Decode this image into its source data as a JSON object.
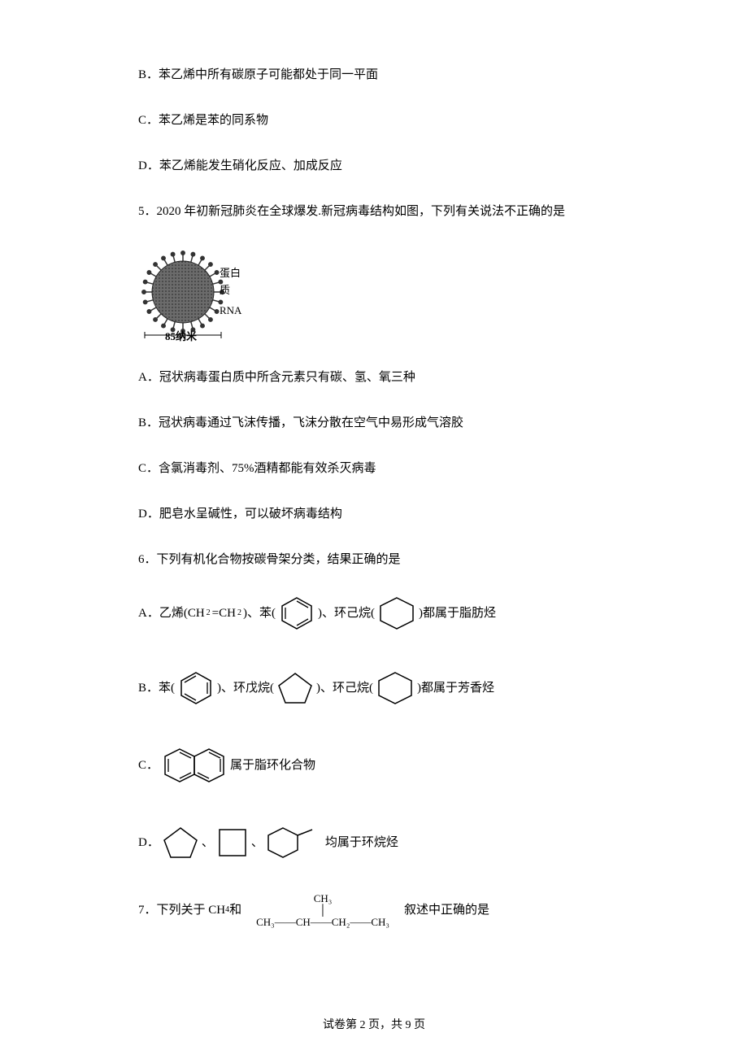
{
  "q4": {
    "optB": "B．苯乙烯中所有碳原子可能都处于同一平面",
    "optC": "C．苯乙烯是苯的同系物",
    "optD": "D．苯乙烯能发生硝化反应、加成反应"
  },
  "q5": {
    "stem": "5．2020 年初新冠肺炎在全球爆发.新冠病毒结构如图，下列有关说法不正确的是",
    "figure": {
      "protein_label": "蛋白质",
      "rna_label": "RNA",
      "size_label": "85纳米",
      "virus_color": "#4a4a4a",
      "spike_color": "#333333",
      "bg": "#ffffff"
    },
    "optA": "A．冠状病毒蛋白质中所含元素只有碳、氢、氧三种",
    "optB": "B．冠状病毒通过飞沫传播，飞沫分散在空气中易形成气溶胶",
    "optC": "C．含氯消毒剂、75%酒精都能有效杀灭病毒",
    "optD": "D．肥皂水呈碱性，可以破坏病毒结构"
  },
  "q6": {
    "stem": "6．下列有机化合物按碳骨架分类，结果正确的是",
    "optA": {
      "pre": "A．乙烯(CH",
      "sub1": "2",
      "mid1": "=CH",
      "sub2": "2",
      "mid2": ")、苯(",
      "mid3": ")、环己烷(",
      "tail": ")都属于脂肪烃"
    },
    "optB": {
      "pre": "B．苯(",
      "mid1": ")、环戊烷(",
      "mid2": ")、环己烷(",
      "tail": ")都属于芳香烃"
    },
    "optC": {
      "pre": "C．",
      "tail": "属于脂环化合物"
    },
    "optD": {
      "pre": "D．",
      "sep": "、",
      "tail": "均属于环烷烃"
    },
    "shapes": {
      "stroke": "#000000",
      "stroke_width": 1.5,
      "hexagon_size": 40,
      "pentagon_size": 42
    }
  },
  "q7": {
    "pre": "7．下列关于 CH",
    "sub": "4",
    "mid": " 和",
    "tail": "叙述中正确的是",
    "structure": {
      "top": "CH₃",
      "bond": "│",
      "bottom": "CH₃——CH——CH₂——CH₃"
    }
  },
  "footer": {
    "text": "试卷第 2 页，共 9 页"
  }
}
